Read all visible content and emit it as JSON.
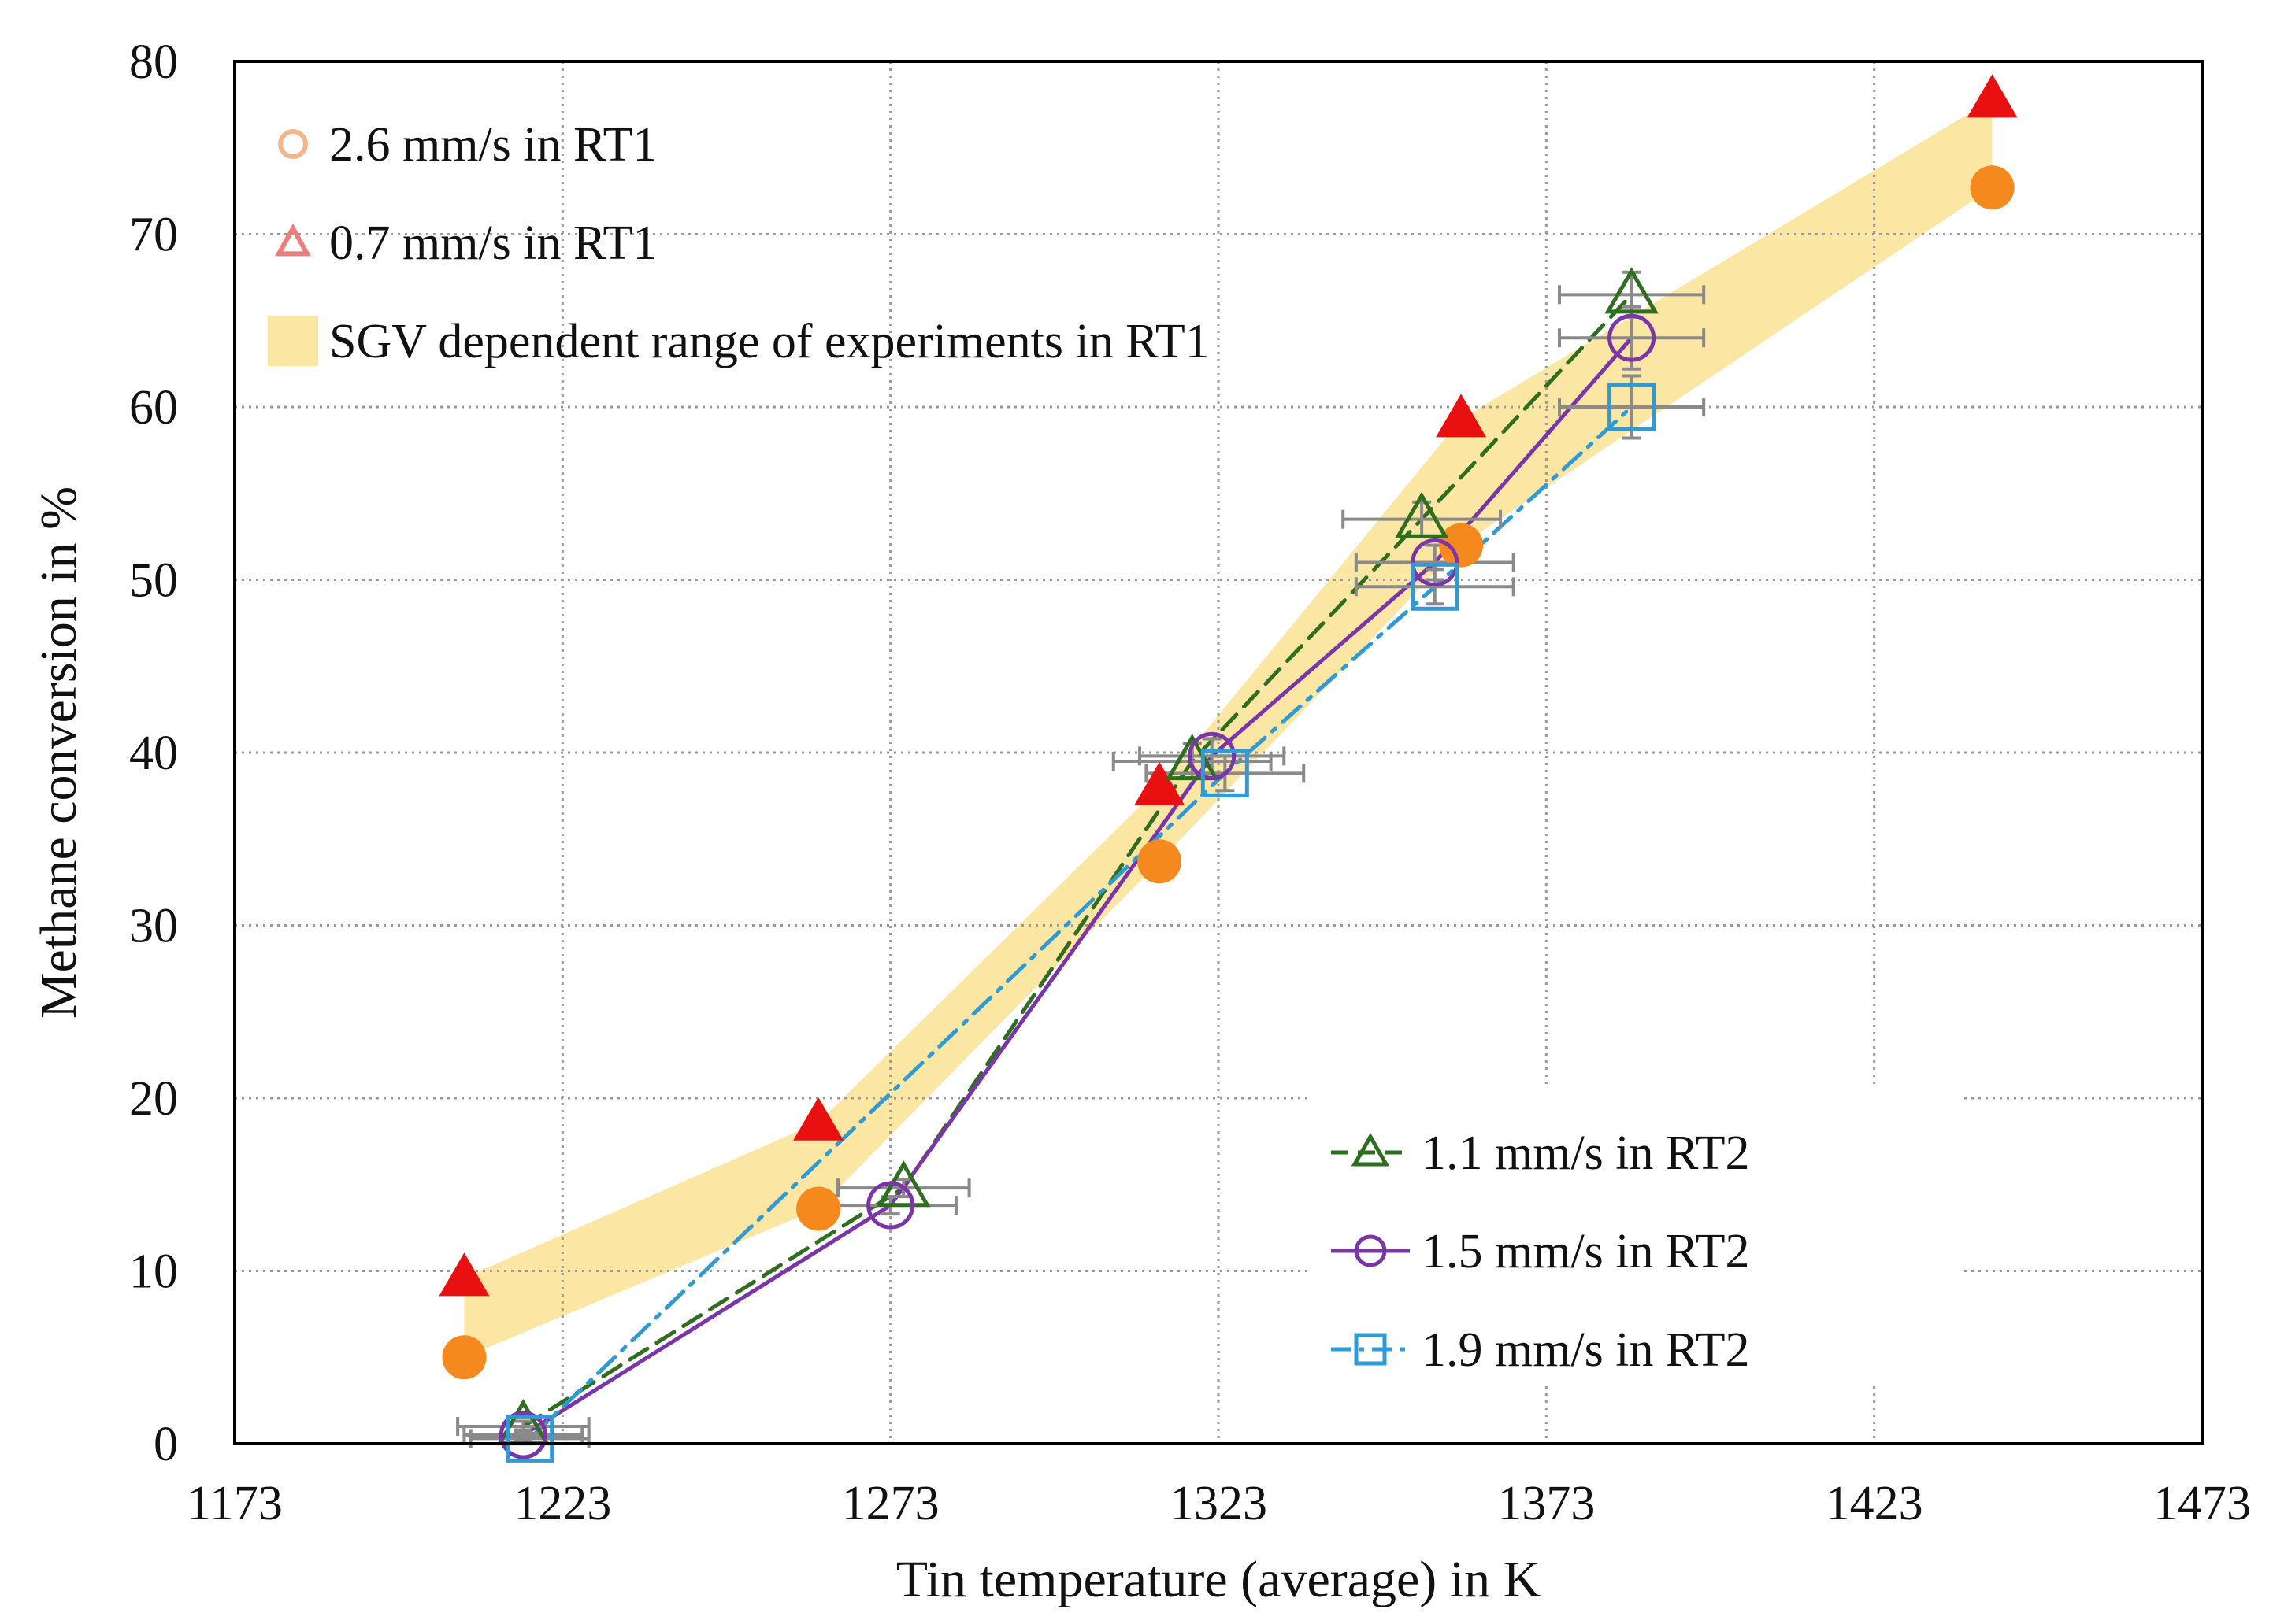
{
  "chart_data": {
    "type": "scatter",
    "title": "",
    "xlabel": "Tin temperature (average) in K",
    "ylabel": "Methane conversion in %",
    "xlim": [
      1173,
      1473
    ],
    "ylim": [
      0,
      80
    ],
    "xticks": [
      1173,
      1223,
      1273,
      1323,
      1373,
      1423,
      1473
    ],
    "yticks": [
      0,
      10,
      20,
      30,
      40,
      50,
      60,
      70,
      80
    ],
    "grid": true,
    "band": {
      "name": "SGV dependent range of experiments in RT1",
      "color": "#FCE6A4",
      "upper": [
        [
          1208,
          9.6
        ],
        [
          1262,
          18.6
        ],
        [
          1314,
          38
        ],
        [
          1360,
          59.3
        ],
        [
          1441,
          77.8
        ]
      ],
      "lower": [
        [
          1208,
          5
        ],
        [
          1262,
          13.6
        ],
        [
          1314,
          33.7
        ],
        [
          1360,
          52
        ],
        [
          1441,
          72.7
        ]
      ]
    },
    "series": [
      {
        "name": "2.6 mm/s in RT1",
        "reactor": "RT1",
        "marker": "circle-filled",
        "color": "#F5891E",
        "legend_color": "#F3B58A",
        "line": "none",
        "x": [
          1208,
          1262,
          1314,
          1360,
          1441
        ],
        "y": [
          5.0,
          13.6,
          33.7,
          52.0,
          72.7
        ]
      },
      {
        "name": "0.7 mm/s in RT1",
        "reactor": "RT1",
        "marker": "triangle-filled",
        "color": "#E81010",
        "legend_color": "#EE7D7D",
        "line": "none",
        "x": [
          1208,
          1262,
          1314,
          1360,
          1441
        ],
        "y": [
          9.6,
          18.6,
          38.0,
          59.3,
          77.8
        ]
      },
      {
        "name": "1.1 mm/s in RT2",
        "reactor": "RT2",
        "marker": "triangle-open",
        "color": "#2E6E1E",
        "line": "dashed",
        "x": [
          1217,
          1275,
          1319,
          1354,
          1386
        ],
        "y": [
          1.0,
          14.8,
          39.5,
          53.5,
          66.5
        ],
        "xerr": [
          10,
          10,
          12,
          12,
          11
        ],
        "yerr": [
          0.3,
          0.5,
          1.0,
          1.0,
          1.3
        ]
      },
      {
        "name": "1.5 mm/s in RT2",
        "reactor": "RT2",
        "marker": "circle-open",
        "color": "#7B35A8",
        "line": "solid",
        "x": [
          1217,
          1273,
          1322,
          1356,
          1386
        ],
        "y": [
          0.5,
          13.8,
          39.8,
          51.0,
          64.0
        ],
        "xerr": [
          9,
          10,
          11,
          12,
          11
        ],
        "yerr": [
          0.3,
          0.5,
          1.0,
          1.0,
          1.8
        ]
      },
      {
        "name": "1.9 mm/s in RT2",
        "reactor": "RT2",
        "marker": "square-open",
        "color": "#2E9BD6",
        "line": "dashdot",
        "x": [
          1218,
          1324,
          1356,
          1386
        ],
        "y": [
          0.3,
          38.8,
          49.6,
          60.0
        ],
        "xerr": [
          9,
          12,
          12,
          11
        ],
        "yerr": [
          0.3,
          1.0,
          1.0,
          1.8
        ]
      }
    ]
  }
}
